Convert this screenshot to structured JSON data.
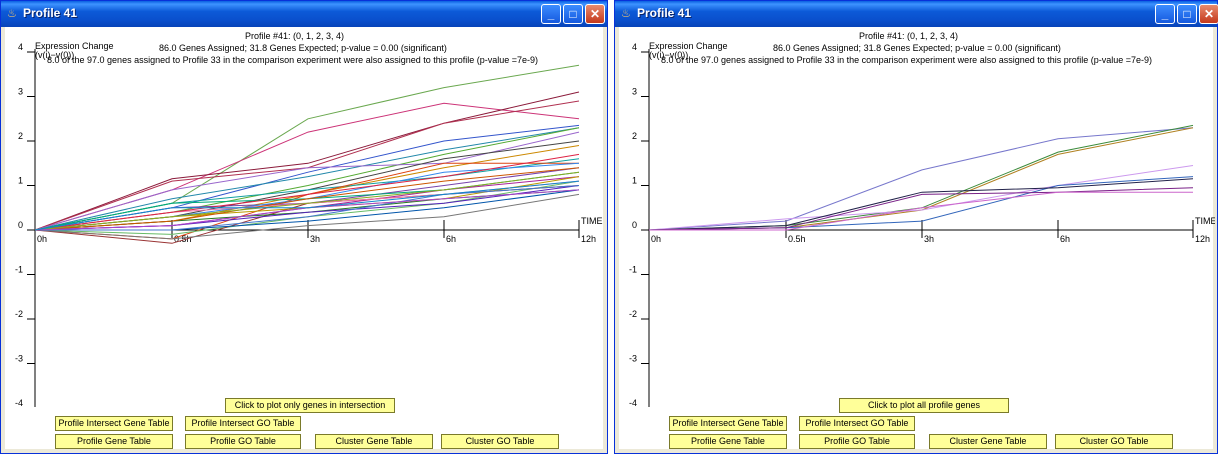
{
  "colors": {
    "button_bg": "#ffff99",
    "title_bar": "#0a4fcc"
  },
  "windows": [
    {
      "title": "Profile 41",
      "header": {
        "profile": "Profile #41: (0, 1, 2, 3, 4)",
        "assigned": "86.0 Genes Assigned; 31.8 Genes Expected; p-value = 0.00 (significant)",
        "comparison": "8.0 of the 97.0 genes assigned to Profile 33 in the comparison experiment were also assigned to this profile (p-value =7e-9)"
      },
      "axis": {
        "ylabel_line1": "Expression Change",
        "ylabel_line2": "(v(i)−v(0))",
        "time_label": "TIME"
      },
      "buttons": {
        "plot_toggle": "Click to plot only genes in intersection",
        "intersect_gene_table": "Profile Intersect Gene Table",
        "intersect_go_table": "Profile Intersect GO Table",
        "profile_gene_table": "Profile Gene Table",
        "profile_go_table": "Profile GO Table",
        "cluster_gene_table": "Cluster Gene Table",
        "cluster_go_table": "Cluster GO Table"
      }
    },
    {
      "title": "Profile 41",
      "header": {
        "profile": "Profile #41: (0, 1, 2, 3, 4)",
        "assigned": "86.0 Genes Assigned; 31.8 Genes Expected; p-value = 0.00 (significant)",
        "comparison": "8.0 of the 97.0 genes assigned to Profile 33 in the comparison experiment were also assigned to this profile (p-value =7e-9)"
      },
      "axis": {
        "ylabel_line1": "Expression Change",
        "ylabel_line2": "(v(i)−v(0))",
        "time_label": "TIME"
      },
      "buttons": {
        "plot_toggle": "Click to plot all profile genes",
        "intersect_gene_table": "Profile Intersect Gene Table",
        "intersect_go_table": "Profile Intersect GO Table",
        "profile_gene_table": "Profile Gene Table",
        "profile_go_table": "Profile GO Table",
        "cluster_gene_table": "Cluster Gene Table",
        "cluster_go_table": "Cluster GO Table"
      }
    }
  ],
  "chart_data": [
    {
      "type": "line",
      "x": [
        "0h",
        "0.5h",
        "3h",
        "6h",
        "12h"
      ],
      "yticks": [
        4,
        3,
        2,
        1,
        0,
        -1,
        -2,
        -3,
        -4
      ],
      "ylim": [
        -4,
        4
      ],
      "xlabel": "TIME",
      "ylabel": "Expression Change (v(i)−v(0))",
      "series": [
        {
          "color": "#6aa84f",
          "values": [
            0,
            0.6,
            2.5,
            3.2,
            3.7
          ]
        },
        {
          "color": "#cc3377",
          "values": [
            0,
            0.9,
            2.2,
            2.85,
            2.5
          ]
        },
        {
          "color": "#8b1a3a",
          "values": [
            0,
            1.15,
            1.5,
            2.4,
            3.1
          ]
        },
        {
          "color": "#b03050",
          "values": [
            0,
            1.1,
            1.4,
            2.4,
            2.9
          ]
        },
        {
          "color": "#3355cc",
          "values": [
            0,
            0.5,
            1.3,
            2.0,
            2.35
          ]
        },
        {
          "color": "#2288aa",
          "values": [
            0,
            0.7,
            1.2,
            1.8,
            2.3
          ]
        },
        {
          "color": "#55aa33",
          "values": [
            0,
            0.4,
            1.0,
            1.7,
            2.3
          ]
        },
        {
          "color": "#9966cc",
          "values": [
            0,
            0.9,
            1.4,
            1.5,
            2.2
          ]
        },
        {
          "color": "#444444",
          "values": [
            0,
            0.3,
            0.9,
            1.6,
            2.0
          ]
        },
        {
          "color": "#cc8800",
          "values": [
            0,
            0.2,
            0.8,
            1.4,
            1.9
          ]
        },
        {
          "color": "#11a0a0",
          "values": [
            0,
            0.6,
            0.9,
            1.2,
            1.6
          ]
        },
        {
          "color": "#dd4411",
          "values": [
            0,
            -0.2,
            0.8,
            1.5,
            1.5
          ]
        },
        {
          "color": "#7744aa",
          "values": [
            0,
            0.5,
            0.6,
            1.0,
            1.4
          ]
        },
        {
          "color": "#3388ee",
          "values": [
            0,
            0.3,
            0.7,
            1.3,
            1.5
          ]
        },
        {
          "color": "#aa2299",
          "values": [
            0,
            0.1,
            0.5,
            0.9,
            1.2
          ]
        },
        {
          "color": "#66bb66",
          "values": [
            0,
            -0.1,
            0.3,
            0.6,
            1.1
          ]
        },
        {
          "color": "#993333",
          "values": [
            0,
            -0.3,
            0.6,
            0.8,
            1.0
          ]
        },
        {
          "color": "#227722",
          "values": [
            0,
            0.2,
            0.4,
            0.7,
            0.9
          ]
        },
        {
          "color": "#ee77aa",
          "values": [
            0,
            0.4,
            0.6,
            0.8,
            1.1
          ]
        },
        {
          "color": "#0055aa",
          "values": [
            0,
            0.0,
            0.2,
            0.5,
            0.9
          ]
        },
        {
          "color": "#bb9900",
          "values": [
            0,
            0.3,
            0.5,
            0.7,
            1.2
          ]
        },
        {
          "color": "#5522bb",
          "values": [
            0,
            0.1,
            0.4,
            0.6,
            1.0
          ]
        },
        {
          "color": "#00aa77",
          "values": [
            0,
            0.6,
            0.7,
            0.9,
            1.3
          ]
        },
        {
          "color": "#cc5500",
          "values": [
            0,
            0.2,
            0.7,
            1.1,
            1.4
          ]
        },
        {
          "color": "#777777",
          "values": [
            0,
            -0.2,
            0.1,
            0.3,
            0.8
          ]
        },
        {
          "color": "#dd2244",
          "values": [
            0,
            0.4,
            0.8,
            1.2,
            1.7
          ]
        },
        {
          "color": "#4477cc",
          "values": [
            0,
            0.0,
            0.3,
            0.8,
            1.0
          ]
        },
        {
          "color": "#88aa22",
          "values": [
            0,
            0.3,
            0.6,
            0.9,
            1.3
          ]
        },
        {
          "color": "#aa44cc",
          "values": [
            0,
            0.1,
            0.5,
            0.7,
            0.9
          ]
        },
        {
          "color": "#1188cc",
          "values": [
            0,
            0.5,
            0.5,
            0.8,
            1.1
          ]
        }
      ]
    },
    {
      "type": "line",
      "x": [
        "0h",
        "0.5h",
        "3h",
        "6h",
        "12h"
      ],
      "yticks": [
        4,
        3,
        2,
        1,
        0,
        -1,
        -2,
        -3,
        -4
      ],
      "ylim": [
        -4,
        4
      ],
      "xlabel": "TIME",
      "ylabel": "Expression Change (v(i)−v(0))",
      "series": [
        {
          "color": "#7777cc",
          "values": [
            0,
            0.2,
            1.35,
            2.05,
            2.3
          ]
        },
        {
          "color": "#3a8a3a",
          "values": [
            0,
            0.1,
            0.5,
            1.75,
            2.35
          ]
        },
        {
          "color": "#b08020",
          "values": [
            0,
            0.05,
            0.45,
            1.7,
            2.3
          ]
        },
        {
          "color": "#cc99ee",
          "values": [
            0,
            0.25,
            0.45,
            1.0,
            1.45
          ]
        },
        {
          "color": "#3366bb",
          "values": [
            0,
            0.05,
            0.2,
            1.0,
            1.2
          ]
        },
        {
          "color": "#22224a",
          "values": [
            0,
            0.1,
            0.85,
            0.95,
            1.15
          ]
        },
        {
          "color": "#7a2288",
          "values": [
            0,
            0.05,
            0.8,
            0.85,
            0.95
          ]
        },
        {
          "color": "#cc66cc",
          "values": [
            0,
            0.0,
            0.5,
            0.85,
            0.85
          ]
        }
      ]
    }
  ]
}
